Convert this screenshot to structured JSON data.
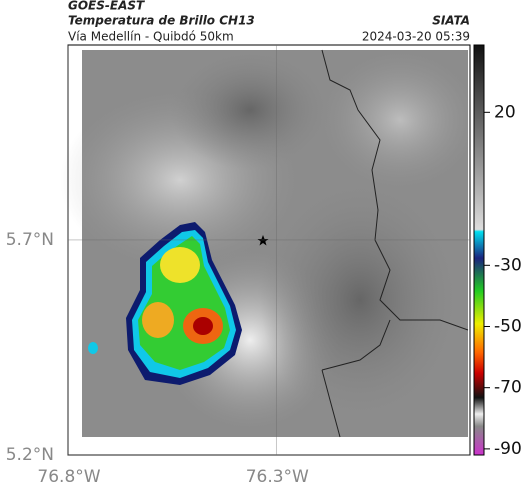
{
  "header": {
    "title": "GOES-EAST",
    "subtitle": "Temperatura de Brillo CH13",
    "source": "SIATA",
    "location": "Vía Medellín - Quibdó 50km",
    "timestamp": "2024-03-20 05:39"
  },
  "map": {
    "xlim": [
      -76.8,
      -75.835
    ],
    "ylim": [
      5.2,
      6.153
    ],
    "xticks": [
      {
        "value": -76.8,
        "label": "76.8°W"
      },
      {
        "value": -76.3,
        "label": "76.3°W"
      }
    ],
    "yticks": [
      {
        "value": 5.2,
        "label": "5.2°N"
      },
      {
        "value": 5.7,
        "label": "5.7°N"
      }
    ]
  },
  "colorbar": {
    "lim": [
      -92,
      42
    ],
    "ticks": [
      20,
      -30,
      -50,
      -70,
      -90
    ]
  }
}
